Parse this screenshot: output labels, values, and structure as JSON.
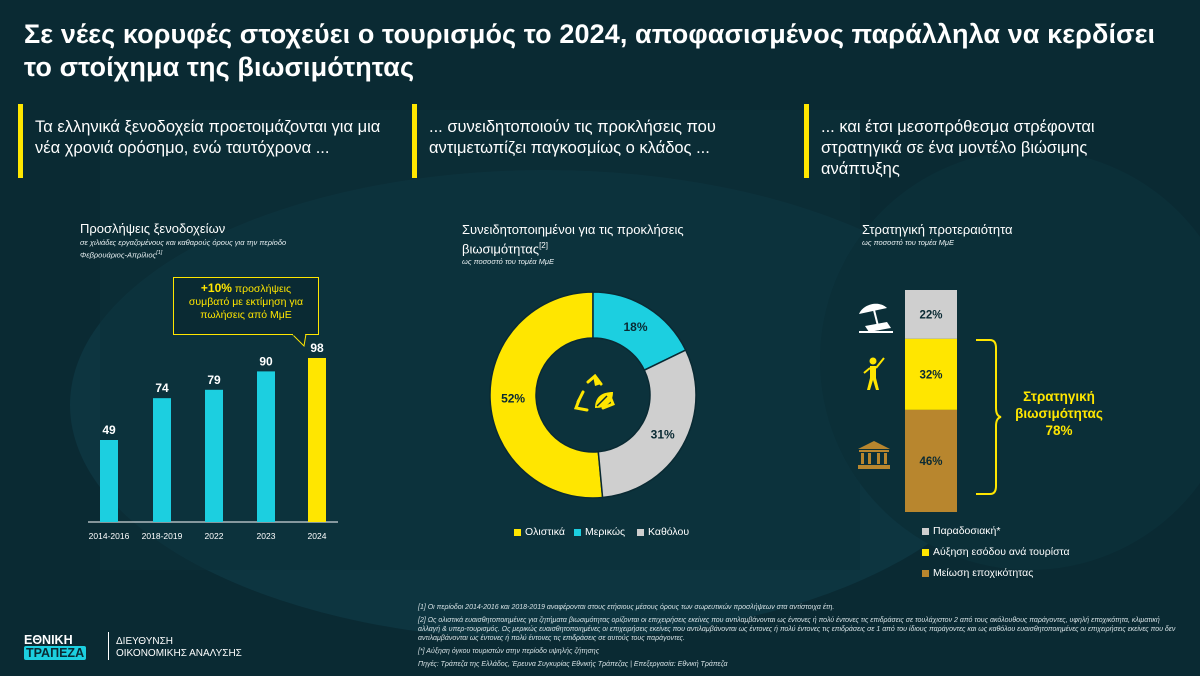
{
  "title": "Σε νέες κορυφές στοχεύει ο τουρισμός το 2024, αποφασισμένος παράλληλα να κερδίσει το στοίχημα της βιωσιμότητας",
  "columns": [
    {
      "text": "Τα ελληνικά ξενοδοχεία προετοιμάζονται για μια νέα χρονιά ορόσημο, ενώ ταυτόχρονα ..."
    },
    {
      "text": "... συνειδητοποιούν τις προκλήσεις που αντιμετωπίζει παγκοσμίως ο κλάδος ..."
    },
    {
      "text": "... και έτσι μεσοπρόθεσμα στρέφονται στρατηγικά σε ένα μοντέλο βιώσιμης ανάπτυξης"
    }
  ],
  "colors": {
    "yellow": "#ffe600",
    "cyan": "#1ccfe0",
    "gray": "#cfcfcf",
    "brown": "#b8862e",
    "bg": "#0a2a33"
  },
  "chart_data": [
    {
      "type": "bar",
      "title": "Προσλήψεις ξενοδοχείων",
      "subtitle_line1": "σε χιλιάδες εργαζομένους και καθαρούς όρους για την περίοδο",
      "subtitle_line2": "Φεβρουάριος-Απρίλιος",
      "subtitle_ref": "[1]",
      "categories": [
        "2014-2016",
        "2018-2019",
        "2022",
        "2023",
        "2024"
      ],
      "values": [
        49,
        74,
        79,
        90,
        98
      ],
      "highlight_index": 4,
      "annotation_bold": "+10%",
      "annotation_text": "προσλήψεις",
      "annotation_line2": "συμβατό με εκτίμηση για",
      "annotation_line3": "πωλήσεις από ΜμΕ"
    },
    {
      "type": "pie",
      "title_line1": "Συνειδητοποιημένοι για τις προκλήσεις",
      "title_line2": "βιωσιμότητας",
      "title_ref": "[2]",
      "subtitle": "ως ποσοστό του τομέα ΜμΕ",
      "center_icon": "recycle-leaf-icon",
      "slices": [
        {
          "name": "Ολιστικά",
          "value": 52,
          "label": "52%"
        },
        {
          "name": "Μερικώς",
          "value": 18,
          "label": "18%"
        },
        {
          "name": "Καθόλου",
          "value": 31,
          "label": "31%"
        }
      ]
    },
    {
      "type": "bar",
      "stacked": true,
      "title": "Στρατηγική προτεραιότητα",
      "subtitle": "ως ποσοστό του τομέα ΜμΕ",
      "segments": [
        {
          "name": "Παραδοσιακή*",
          "value": 22,
          "label": "22%",
          "icon": "beach-umbrella-icon"
        },
        {
          "name": "Αύξηση εσόδου ανά τουρίστα",
          "value": 32,
          "label": "32%",
          "icon": "golfer-icon"
        },
        {
          "name": "Μείωση εποχικότητας",
          "value": 46,
          "label": "46%",
          "icon": "museum-icon"
        }
      ],
      "bracket_line1": "Στρατηγική",
      "bracket_line2": "βιωσιμότητας",
      "bracket_line3": "78%"
    }
  ],
  "footnotes": [
    "[1] Οι περίοδοι 2014-2016 και 2018-2019 αναφέρονται στους ετήσιους μέσους όρους των σωρευτικών προσλήψεων στα αντίστοιχα έτη.",
    "[2] Ως ολιστικά ευαισθητοποιημένες για ζητήματα βιωσιμότητας ορίζονται οι επιχειρήσεις εκείνες που αντιλαμβάνονται ως έντονες ή πολύ έντονες τις επιδράσεις σε τουλάχιστον 2 από τους ακόλουθους παράγοντες, υφηλή εποχικότητα, κλιματική αλλαγή & υπερ-τουρισμός. Ως μερικώς ευαισθητοποιημένες οι επιχειρήσεις εκείνες που αντιλαμβάνονται ως έντονες ή πολύ έντονες τις επιδράσεις σε 1 από του ίδιους παράγοντες και ως καθόλου ευαισθητοποιημένες οι επιχειρήσεις εκείνες που δεν αντιλαμβάνονται ως έντονες ή πολύ έντονες τις επιδράσεις σε αυτούς τους παράγοντες.",
    "[*] Αύξηση όγκου τουριστών στην περίοδο υψηλής ζήτησης",
    "Πηγές: Τράπεζα της Ελλάδος, Έρευνα Συγκυρίας Εθνικής Τράπεζας | Επεξεργασία: Εθνική Τράπεζα"
  ],
  "logo": {
    "line1": "ΕΘΝΙΚΗ",
    "line2": "ΤΡΑΠΕΖΑ",
    "dept1": "ΔΙΕΥΘΥΝΣΗ",
    "dept2": "ΟΙΚΟΝΟΜΙΚΗΣ ΑΝΑΛΥΣΗΣ"
  }
}
